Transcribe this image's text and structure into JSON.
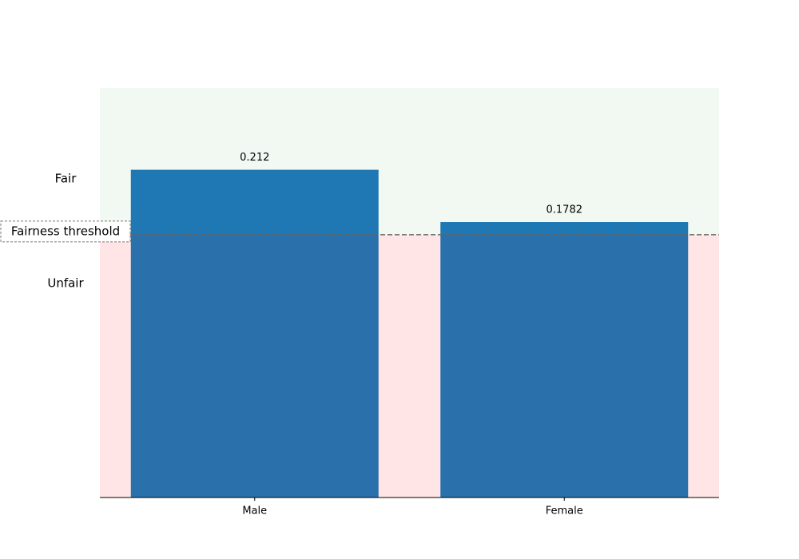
{
  "chart_data": {
    "type": "bar",
    "categories": [
      "Male",
      "Female"
    ],
    "values": [
      0.212,
      0.1782
    ],
    "color": "#1f77b4",
    "ylim": [
      0,
      0.265
    ],
    "threshold": 0.17,
    "threshold_label": "Fairness threshold",
    "fair_label": "Fair",
    "unfair_label": "Unfair"
  }
}
